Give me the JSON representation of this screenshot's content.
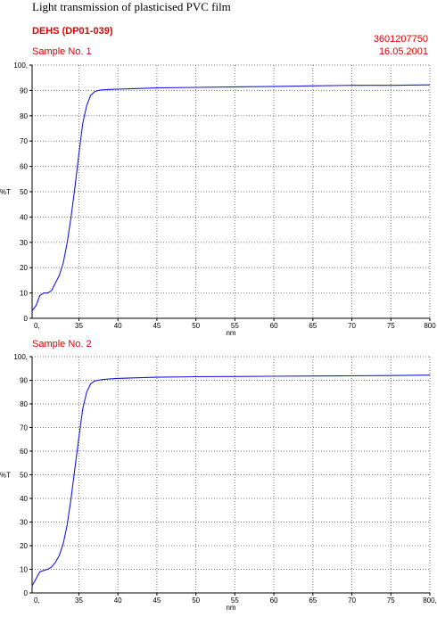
{
  "title": "Light transmission of plasticised PVC film",
  "product": "DEHS (DP01-039)",
  "code": "3601207750",
  "date": "16.05.2001",
  "colors": {
    "header": "#e00000",
    "curve": "#1a1adc",
    "grid": "#7a7a7a"
  },
  "chart_data": [
    {
      "type": "line",
      "title": "Sample No. 1",
      "xlabel": "nm",
      "ylabel": "%T",
      "xlim": [
        290,
        800
      ],
      "ylim": [
        0,
        100
      ],
      "x_ticks": [
        {
          "v": 350,
          "label": "35"
        },
        {
          "v": 400,
          "label": "40"
        },
        {
          "v": 450,
          "label": "45"
        },
        {
          "v": 500,
          "label": "50"
        },
        {
          "v": 550,
          "label": "55"
        },
        {
          "v": 600,
          "label": "60"
        },
        {
          "v": 650,
          "label": "65"
        },
        {
          "v": 700,
          "label": "70"
        },
        {
          "v": 750,
          "label": "75"
        },
        {
          "v": 800,
          "label": "800"
        }
      ],
      "x_origin_label": "0,",
      "y_ticks": [
        {
          "v": 0,
          "label": "0"
        },
        {
          "v": 10,
          "label": "10"
        },
        {
          "v": 20,
          "label": "20"
        },
        {
          "v": 30,
          "label": "30"
        },
        {
          "v": 40,
          "label": "40"
        },
        {
          "v": 50,
          "label": "50"
        },
        {
          "v": 60,
          "label": "60"
        },
        {
          "v": 70,
          "label": "70"
        },
        {
          "v": 80,
          "label": "80"
        },
        {
          "v": 90,
          "label": "90"
        },
        {
          "v": 100,
          "label": "100,"
        }
      ],
      "grid": true,
      "series": [
        {
          "x": [
            290,
            295,
            300,
            305,
            310,
            315,
            320,
            325,
            330,
            335,
            340,
            345,
            350,
            355,
            360,
            365,
            370,
            375,
            380,
            390,
            400,
            420,
            450,
            500,
            550,
            600,
            650,
            700,
            750,
            800
          ],
          "values": [
            3,
            5,
            9,
            10,
            10,
            11,
            14,
            17,
            22,
            30,
            40,
            52,
            65,
            77,
            84,
            88,
            89.5,
            90,
            90.2,
            90.4,
            90.5,
            90.7,
            91,
            91.2,
            91.4,
            91.6,
            91.8,
            92,
            92,
            92.2
          ]
        }
      ]
    },
    {
      "type": "line",
      "title": "Sample No. 2",
      "xlabel": "nm",
      "ylabel": "%T",
      "xlim": [
        290,
        800
      ],
      "ylim": [
        0,
        100
      ],
      "x_ticks": [
        {
          "v": 350,
          "label": "35"
        },
        {
          "v": 400,
          "label": "40"
        },
        {
          "v": 450,
          "label": "45"
        },
        {
          "v": 500,
          "label": "50"
        },
        {
          "v": 550,
          "label": "55"
        },
        {
          "v": 600,
          "label": "60"
        },
        {
          "v": 650,
          "label": "65"
        },
        {
          "v": 700,
          "label": "70"
        },
        {
          "v": 750,
          "label": "75"
        },
        {
          "v": 800,
          "label": "800,"
        }
      ],
      "x_origin_label": "0,",
      "y_ticks": [
        {
          "v": 0,
          "label": "0"
        },
        {
          "v": 10,
          "label": "10"
        },
        {
          "v": 20,
          "label": "20"
        },
        {
          "v": 30,
          "label": "30"
        },
        {
          "v": 40,
          "label": "40"
        },
        {
          "v": 50,
          "label": "50"
        },
        {
          "v": 60,
          "label": "60"
        },
        {
          "v": 70,
          "label": "70"
        },
        {
          "v": 80,
          "label": "80"
        },
        {
          "v": 90,
          "label": "90"
        },
        {
          "v": 100,
          "label": "100,"
        }
      ],
      "grid": true,
      "series": [
        {
          "x": [
            290,
            295,
            300,
            305,
            310,
            315,
            320,
            325,
            330,
            335,
            340,
            345,
            350,
            355,
            360,
            365,
            370,
            375,
            380,
            390,
            400,
            420,
            450,
            500,
            550,
            600,
            650,
            700,
            750,
            800
          ],
          "values": [
            3,
            6,
            9,
            9.5,
            10,
            11,
            13,
            16,
            21,
            29,
            40,
            53,
            66,
            78,
            85,
            88.5,
            89.7,
            90,
            90.3,
            90.6,
            90.8,
            91,
            91.3,
            91.5,
            91.6,
            91.7,
            91.8,
            91.9,
            92,
            92.2
          ]
        }
      ]
    }
  ]
}
